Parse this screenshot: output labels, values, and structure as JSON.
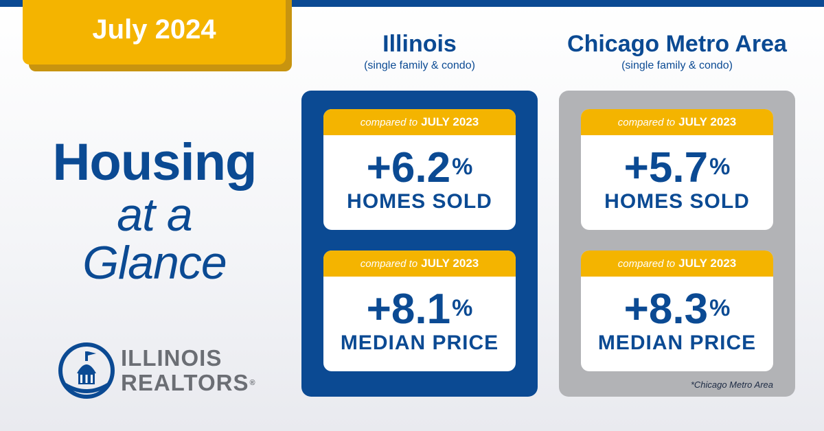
{
  "date_label": "July 2024",
  "hero": {
    "line1": "Housing",
    "line2": "at a",
    "line3": "Glance"
  },
  "columns": [
    {
      "name": "Illinois",
      "subtitle": "(single family & condo)",
      "cards": [
        {
          "compare_text": "compared to",
          "compare_year": "JULY 2023",
          "value": "+6.2",
          "unit": "%",
          "label": "HOMES SOLD"
        },
        {
          "compare_text": "compared to",
          "compare_year": "JULY 2023",
          "value": "+8.1",
          "unit": "%",
          "label": "MEDIAN PRICE"
        }
      ]
    },
    {
      "name": "Chicago Metro Area",
      "subtitle": "(single family & condo)",
      "cards": [
        {
          "compare_text": "compared to",
          "compare_year": "JULY 2023",
          "value": "+5.7",
          "unit": "%",
          "label": "HOMES SOLD"
        },
        {
          "compare_text": "compared to",
          "compare_year": "JULY 2023",
          "value": "+8.3",
          "unit": "%",
          "label": "MEDIAN PRICE"
        }
      ],
      "footnote": "*Chicago Metro Area"
    }
  ],
  "logo": {
    "line1": "ILLINOIS",
    "line2": "REALTORS",
    "reg": "®",
    "icon": "capitol-dome-icon"
  },
  "colors": {
    "brand_blue": "#0b4a93",
    "gold": "#f4b400",
    "gray_panel": "#b2b3b6",
    "logo_gray": "#6b6e74"
  }
}
